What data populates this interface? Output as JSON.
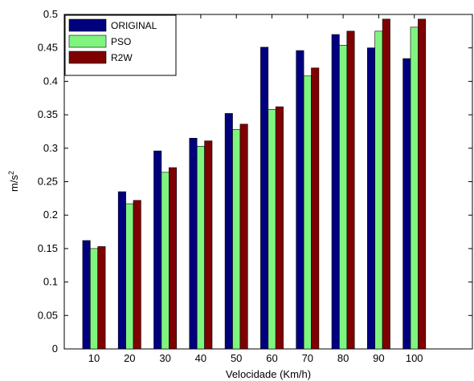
{
  "chart_data": {
    "type": "bar",
    "categories": [
      "10",
      "20",
      "30",
      "40",
      "50",
      "60",
      "70",
      "80",
      "90",
      "100"
    ],
    "series": [
      {
        "name": "ORIGINAL",
        "color": "#00007f",
        "values": [
          0.162,
          0.235,
          0.296,
          0.315,
          0.352,
          0.451,
          0.446,
          0.47,
          0.45,
          0.434
        ]
      },
      {
        "name": "PSO",
        "color": "#7ff57f",
        "values": [
          0.15,
          0.217,
          0.264,
          0.303,
          0.328,
          0.358,
          0.408,
          0.454,
          0.475,
          0.481
        ]
      },
      {
        "name": "R2W",
        "color": "#7f0000",
        "values": [
          0.153,
          0.222,
          0.271,
          0.311,
          0.336,
          0.362,
          0.42,
          0.475,
          0.493,
          0.493
        ]
      }
    ],
    "title": "",
    "xlabel": "Velocidade (Km/h)",
    "ylabel_base": "m/s",
    "ylabel_exp": "2",
    "ylim": [
      0,
      0.5
    ],
    "yticks": [
      "0",
      "0.05",
      "0.1",
      "0.15",
      "0.2",
      "0.25",
      "0.3",
      "0.35",
      "0.4",
      "0.45",
      "0.5"
    ],
    "legend_position": "top-left",
    "grid": false
  }
}
